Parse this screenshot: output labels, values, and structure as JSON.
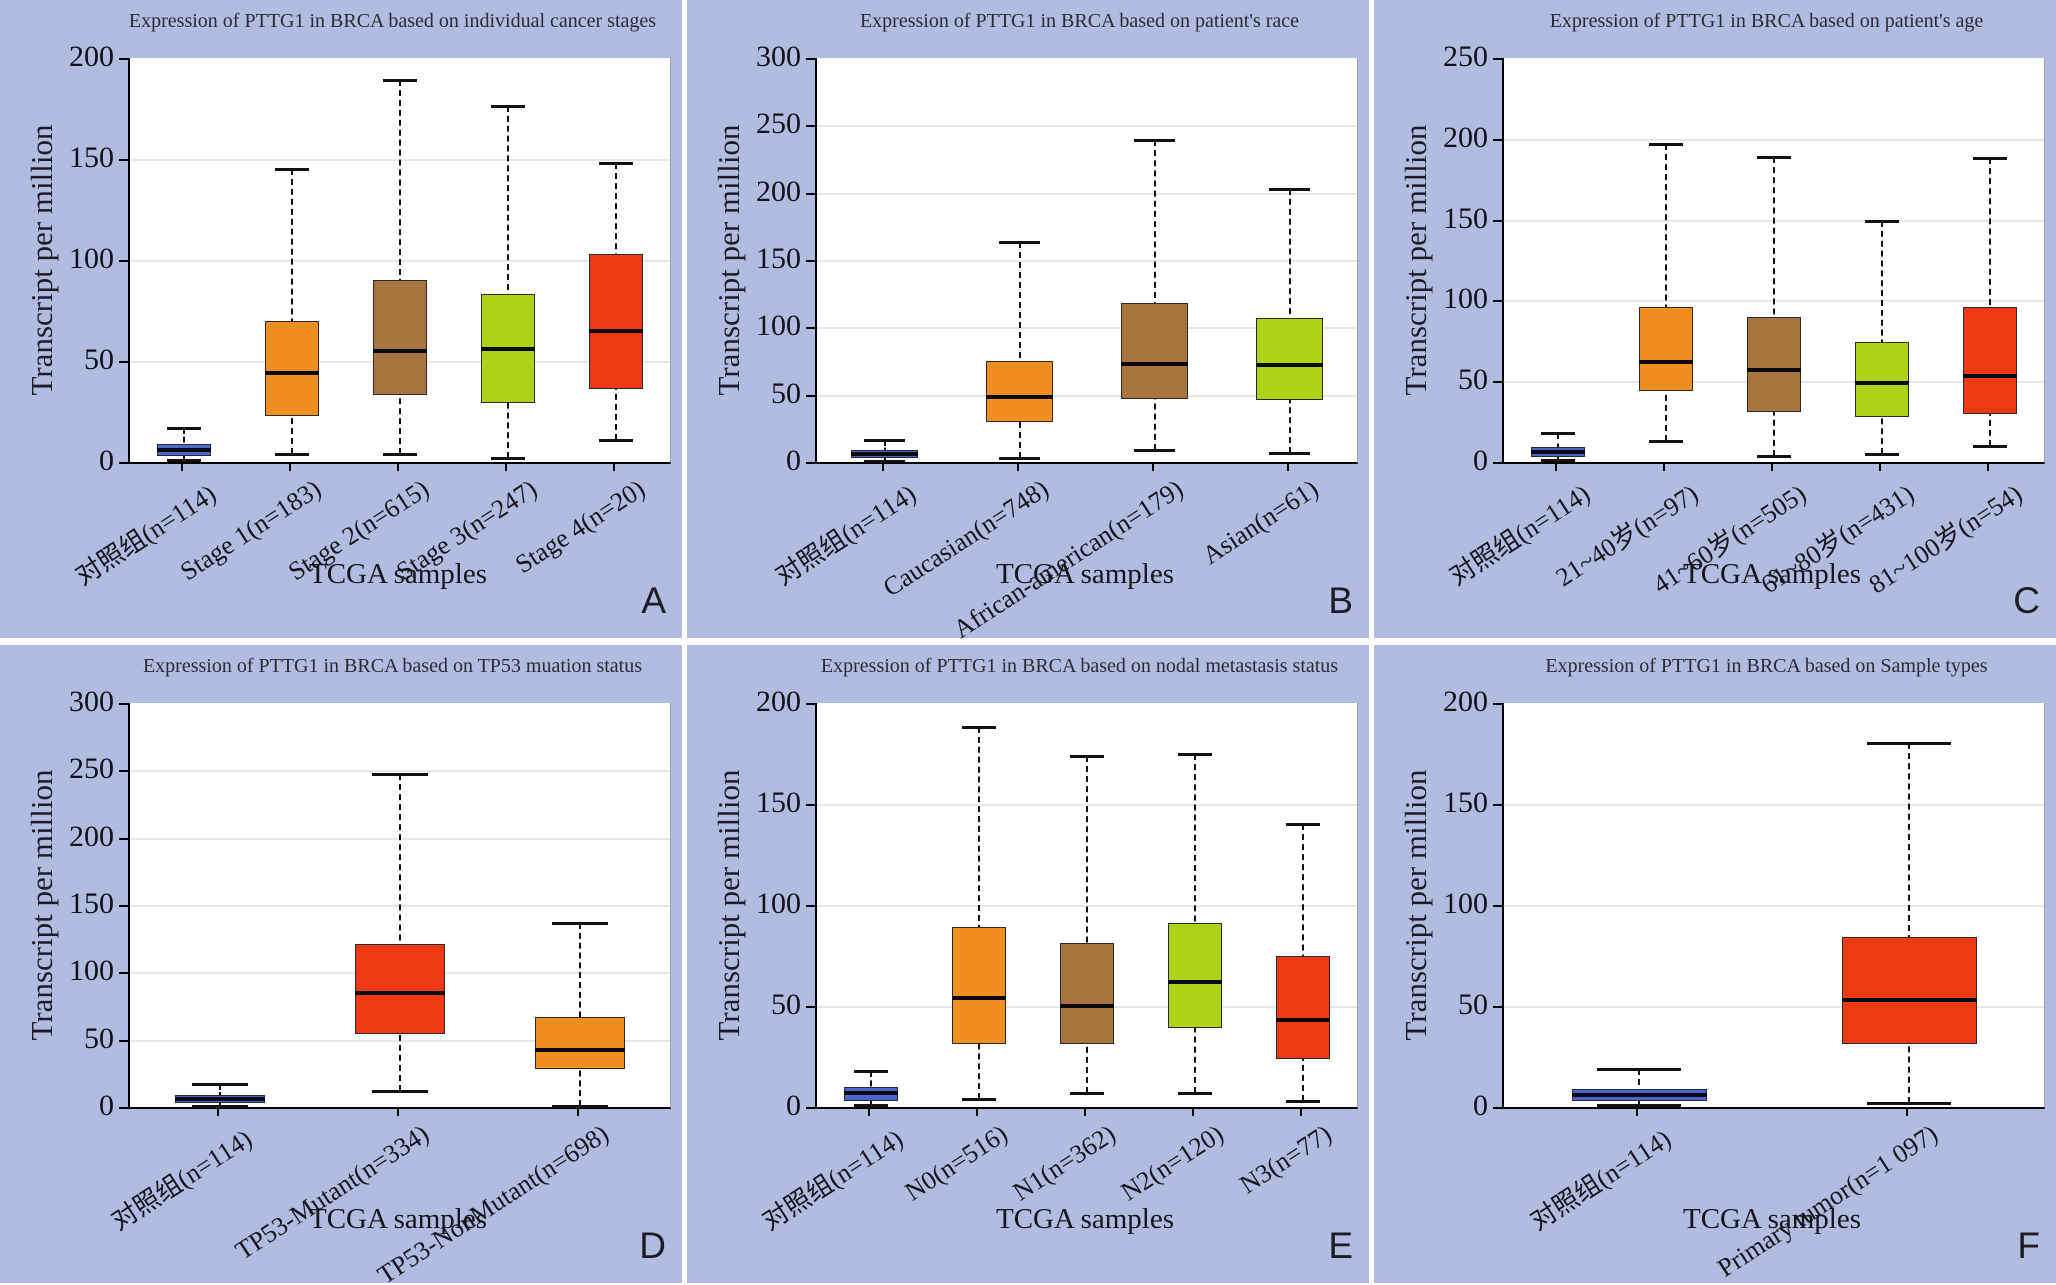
{
  "figure": {
    "background_color": "#b2bbe0",
    "plot_background": "#ffffff",
    "gridline_color": "#e7e7e7",
    "shared_ylabel": "Transcript per million",
    "shared_xlabel": "TCGA samples"
  },
  "palette": {
    "control_blue": "#4a65cb",
    "orange": "#ef8f21",
    "brown": "#a9753f",
    "green": "#aed119",
    "red": "#ee3a14"
  },
  "chart_data": [
    {
      "type": "box",
      "panel_letter": "A",
      "title": "Expression of PTTG1 in BRCA based on individual cancer stages",
      "xlabel": "TCGA samples",
      "ylabel": "Transcript per million",
      "ylim": [
        0,
        200
      ],
      "ytick_step": 50,
      "grid": true,
      "boxes": [
        {
          "label": "对照组(n=114)",
          "color": "#4a65cb",
          "whisker_low": 1,
          "q1": 3,
          "median": 6,
          "q3": 9,
          "whisker_high": 17
        },
        {
          "label": "Stage 1(n=183)",
          "color": "#ef8f21",
          "whisker_low": 4,
          "q1": 23,
          "median": 44,
          "q3": 70,
          "whisker_high": 145
        },
        {
          "label": "Stage 2(n=615)",
          "color": "#a9753f",
          "whisker_low": 4,
          "q1": 33,
          "median": 55,
          "q3": 90,
          "whisker_high": 189
        },
        {
          "label": "Stage 3(n=247)",
          "color": "#aed119",
          "whisker_low": 2,
          "q1": 29,
          "median": 56,
          "q3": 83,
          "whisker_high": 176
        },
        {
          "label": "Stage 4(n=20)",
          "color": "#ee3a14",
          "whisker_low": 11,
          "q1": 36,
          "median": 65,
          "q3": 103,
          "whisker_high": 148
        }
      ]
    },
    {
      "type": "box",
      "panel_letter": "B",
      "title": "Expression of PTTG1 in BRCA based on patient's race",
      "xlabel": "TCGA samples",
      "ylabel": "Transcript per million",
      "ylim": [
        0,
        300
      ],
      "ytick_step": 50,
      "grid": true,
      "boxes": [
        {
          "label": "对照组(n=114)",
          "color": "#4a65cb",
          "whisker_low": 1,
          "q1": 3,
          "median": 6,
          "q3": 9,
          "whisker_high": 16
        },
        {
          "label": "Caucasian(n=748)",
          "color": "#ef8f21",
          "whisker_low": 3,
          "q1": 30,
          "median": 48,
          "q3": 75,
          "whisker_high": 163
        },
        {
          "label": "African-american(n=179)",
          "color": "#a9753f",
          "whisker_low": 9,
          "q1": 47,
          "median": 73,
          "q3": 118,
          "whisker_high": 239
        },
        {
          "label": "Asian(n=61)",
          "color": "#aed119",
          "whisker_low": 7,
          "q1": 46,
          "median": 72,
          "q3": 107,
          "whisker_high": 203
        }
      ]
    },
    {
      "type": "box",
      "panel_letter": "C",
      "title": "Expression of PTTG1 in BRCA based on patient's age",
      "xlabel": "TCGA samples",
      "ylabel": "Transcript per million",
      "ylim": [
        0,
        250
      ],
      "ytick_step": 50,
      "grid": true,
      "boxes": [
        {
          "label": "对照组(n=114)",
          "color": "#4a65cb",
          "whisker_low": 1,
          "q1": 3,
          "median": 6,
          "q3": 9,
          "whisker_high": 18
        },
        {
          "label": "21~40岁(n=97)",
          "color": "#ef8f21",
          "whisker_low": 13,
          "q1": 44,
          "median": 62,
          "q3": 96,
          "whisker_high": 197
        },
        {
          "label": "41~60岁(n=505)",
          "color": "#a9753f",
          "whisker_low": 4,
          "q1": 31,
          "median": 57,
          "q3": 90,
          "whisker_high": 189
        },
        {
          "label": "61~80岁(n=431)",
          "color": "#aed119",
          "whisker_low": 5,
          "q1": 28,
          "median": 49,
          "q3": 74,
          "whisker_high": 149
        },
        {
          "label": "81~100岁(n=54)",
          "color": "#ee3a14",
          "whisker_low": 10,
          "q1": 30,
          "median": 53,
          "q3": 96,
          "whisker_high": 188
        }
      ]
    },
    {
      "type": "box",
      "panel_letter": "D",
      "title": "Expression of PTTG1 in BRCA based on TP53 muation status",
      "xlabel": "TCGA samples",
      "ylabel": "Transcript per million",
      "ylim": [
        0,
        300
      ],
      "ytick_step": 50,
      "grid": true,
      "boxes": [
        {
          "label": "对照组(n=114)",
          "color": "#4a65cb",
          "whisker_low": 1,
          "q1": 3,
          "median": 6,
          "q3": 9,
          "whisker_high": 17
        },
        {
          "label": "TP53-Mutant(n=334)",
          "color": "#ee3a14",
          "whisker_low": 12,
          "q1": 54,
          "median": 85,
          "q3": 121,
          "whisker_high": 247
        },
        {
          "label": "TP53-NonMutant(n=698)",
          "color": "#ef8f21",
          "whisker_low": 1,
          "q1": 28,
          "median": 42,
          "q3": 67,
          "whisker_high": 137
        }
      ]
    },
    {
      "type": "box",
      "panel_letter": "E",
      "title": "Expression of PTTG1 in BRCA based on nodal metastasis status",
      "xlabel": "TCGA samples",
      "ylabel": "Transcript per million",
      "ylim": [
        0,
        200
      ],
      "ytick_step": 50,
      "grid": true,
      "boxes": [
        {
          "label": "对照组(n=114)",
          "color": "#4a65cb",
          "whisker_low": 1,
          "q1": 3,
          "median": 7,
          "q3": 10,
          "whisker_high": 18
        },
        {
          "label": "N0(n=516)",
          "color": "#ef8f21",
          "whisker_low": 4,
          "q1": 31,
          "median": 54,
          "q3": 89,
          "whisker_high": 188
        },
        {
          "label": "N1(n=362)",
          "color": "#a9753f",
          "whisker_low": 7,
          "q1": 31,
          "median": 50,
          "q3": 81,
          "whisker_high": 174
        },
        {
          "label": "N2(n=120)",
          "color": "#aed119",
          "whisker_low": 7,
          "q1": 39,
          "median": 62,
          "q3": 91,
          "whisker_high": 175
        },
        {
          "label": "N3(n=77)",
          "color": "#ee3a14",
          "whisker_low": 3,
          "q1": 24,
          "median": 43,
          "q3": 75,
          "whisker_high": 140
        }
      ]
    },
    {
      "type": "box",
      "panel_letter": "F",
      "title": "Expression of PTTG1 in BRCA based on Sample types",
      "xlabel": "TCGA samples",
      "ylabel": "Transcript per million",
      "ylim": [
        0,
        200
      ],
      "ytick_step": 50,
      "grid": true,
      "boxes": [
        {
          "label": "对照组(n=114)",
          "color": "#4a65cb",
          "whisker_low": 1,
          "q1": 3,
          "median": 6,
          "q3": 9,
          "whisker_high": 19
        },
        {
          "label": "Primary tumor(n=1 097)",
          "color": "#ee3a14",
          "whisker_low": 2,
          "q1": 31,
          "median": 53,
          "q3": 84,
          "whisker_high": 180
        }
      ]
    }
  ]
}
